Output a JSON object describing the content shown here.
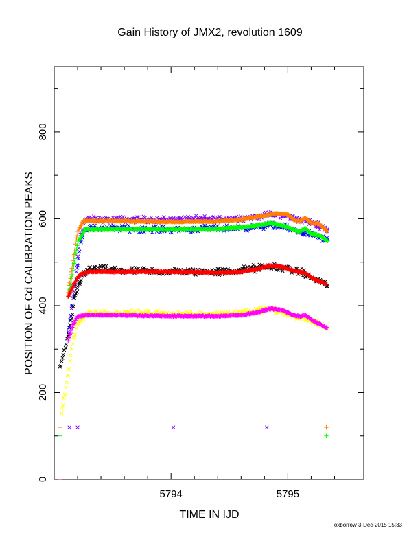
{
  "chart_data": {
    "type": "scatter",
    "title": "Gain History of JMX2, revolution 1609",
    "xlabel": "TIME IN IJD",
    "ylabel": "POSITION OF Cd CALIBRATION PEAKS",
    "footer": "oxborrow 3-Dec-2015 15:33",
    "xlim": [
      5793.0,
      5795.65
    ],
    "ylim": [
      0,
      950
    ],
    "x_ticks": [
      5794,
      5795
    ],
    "y_ticks": [
      0,
      200,
      400,
      600,
      800
    ],
    "grid": false,
    "legend": "none",
    "series": [
      {
        "name": "",
        "marker": "x",
        "color": "#7f00ff",
        "points": [
          [
            5793.13,
            120
          ],
          [
            5793.2,
            120
          ],
          [
            5794.02,
            120
          ],
          [
            5794.82,
            120
          ]
        ],
        "profile": [
          [
            5793.12,
            330
          ],
          [
            5793.18,
            450
          ],
          [
            5793.22,
            560
          ],
          [
            5793.26,
            598
          ],
          [
            5793.5,
            598
          ],
          [
            5794.0,
            598
          ],
          [
            5794.5,
            600
          ],
          [
            5794.7,
            603
          ],
          [
            5794.85,
            610
          ],
          [
            5795.0,
            605
          ],
          [
            5795.1,
            598
          ],
          [
            5795.2,
            592
          ],
          [
            5795.34,
            575
          ]
        ],
        "scatter": 10
      },
      {
        "name": "",
        "marker": "x",
        "color": "#0000ff",
        "points": [],
        "profile": [
          [
            5793.12,
            340
          ],
          [
            5793.18,
            440
          ],
          [
            5793.22,
            540
          ],
          [
            5793.26,
            578
          ],
          [
            5793.5,
            578
          ],
          [
            5794.0,
            575
          ],
          [
            5794.5,
            578
          ],
          [
            5794.7,
            580
          ],
          [
            5794.85,
            585
          ],
          [
            5795.0,
            578
          ],
          [
            5795.1,
            570
          ],
          [
            5795.2,
            565
          ],
          [
            5795.34,
            550
          ]
        ],
        "scatter": 10
      },
      {
        "name": "",
        "marker": "x",
        "color": "#000000",
        "points": [],
        "profile": [
          [
            5793.05,
            255
          ],
          [
            5793.12,
            330
          ],
          [
            5793.18,
            420
          ],
          [
            5793.24,
            470
          ],
          [
            5793.3,
            485
          ],
          [
            5793.6,
            480
          ],
          [
            5794.0,
            478
          ],
          [
            5794.5,
            478
          ],
          [
            5794.7,
            485
          ],
          [
            5794.85,
            490
          ],
          [
            5795.0,
            485
          ],
          [
            5795.1,
            478
          ],
          [
            5795.2,
            465
          ],
          [
            5795.34,
            448
          ]
        ],
        "scatter": 12
      },
      {
        "name": "",
        "marker": "x",
        "color": "#ffff00",
        "points": [],
        "profile": [
          [
            5793.06,
            150
          ],
          [
            5793.1,
            210
          ],
          [
            5793.15,
            300
          ],
          [
            5793.2,
            360
          ],
          [
            5793.28,
            382
          ],
          [
            5793.6,
            383
          ],
          [
            5794.0,
            380
          ],
          [
            5794.5,
            382
          ],
          [
            5794.7,
            388
          ],
          [
            5794.85,
            392
          ],
          [
            5795.0,
            380
          ],
          [
            5795.1,
            372
          ],
          [
            5795.2,
            365
          ],
          [
            5795.34,
            350
          ]
        ],
        "scatter": 10
      },
      {
        "name": "",
        "marker": "+",
        "color": "#ff8000",
        "points": [
          [
            5793.05,
            120
          ],
          [
            5795.33,
            120
          ]
        ],
        "profile": [
          [
            5793.12,
            430
          ],
          [
            5793.16,
            500
          ],
          [
            5793.2,
            570
          ],
          [
            5793.25,
            595
          ],
          [
            5793.5,
            595
          ],
          [
            5794.0,
            593
          ],
          [
            5794.4,
            594
          ],
          [
            5794.6,
            598
          ],
          [
            5794.75,
            605
          ],
          [
            5794.9,
            612
          ],
          [
            5795.0,
            610
          ],
          [
            5795.05,
            598
          ],
          [
            5795.1,
            594
          ],
          [
            5795.15,
            602
          ],
          [
            5795.2,
            590
          ],
          [
            5795.27,
            588
          ],
          [
            5795.34,
            570
          ]
        ],
        "scatter": 2
      },
      {
        "name": "",
        "marker": "+",
        "color": "#00ff00",
        "points": [
          [
            5793.05,
            100
          ],
          [
            5795.33,
            100
          ]
        ],
        "profile": [
          [
            5793.12,
            420
          ],
          [
            5793.16,
            480
          ],
          [
            5793.2,
            545
          ],
          [
            5793.26,
            575
          ],
          [
            5793.5,
            576
          ],
          [
            5794.0,
            575
          ],
          [
            5794.4,
            576
          ],
          [
            5794.6,
            580
          ],
          [
            5794.75,
            585
          ],
          [
            5794.85,
            590
          ],
          [
            5794.95,
            585
          ],
          [
            5795.05,
            575
          ],
          [
            5795.1,
            570
          ],
          [
            5795.15,
            578
          ],
          [
            5795.2,
            565
          ],
          [
            5795.27,
            562
          ],
          [
            5795.34,
            548
          ]
        ],
        "scatter": 2
      },
      {
        "name": "",
        "marker": "+",
        "color": "#ff0000",
        "points": [
          [
            5793.05,
            0
          ]
        ],
        "profile": [
          [
            5793.12,
            420
          ],
          [
            5793.17,
            450
          ],
          [
            5793.22,
            472
          ],
          [
            5793.3,
            478
          ],
          [
            5793.6,
            478
          ],
          [
            5794.0,
            478
          ],
          [
            5794.4,
            476
          ],
          [
            5794.6,
            478
          ],
          [
            5794.75,
            485
          ],
          [
            5794.85,
            492
          ],
          [
            5794.95,
            490
          ],
          [
            5795.05,
            480
          ],
          [
            5795.15,
            475
          ],
          [
            5795.22,
            462
          ],
          [
            5795.34,
            448
          ]
        ],
        "scatter": 2
      },
      {
        "name": "",
        "marker": "+",
        "color": "#ff00ff",
        "points": [],
        "profile": [
          [
            5793.12,
            320
          ],
          [
            5793.16,
            355
          ],
          [
            5793.2,
            375
          ],
          [
            5793.28,
            378
          ],
          [
            5793.6,
            378
          ],
          [
            5794.0,
            376
          ],
          [
            5794.4,
            376
          ],
          [
            5794.6,
            378
          ],
          [
            5794.75,
            385
          ],
          [
            5794.85,
            393
          ],
          [
            5794.95,
            390
          ],
          [
            5795.05,
            378
          ],
          [
            5795.1,
            375
          ],
          [
            5795.15,
            378
          ],
          [
            5795.2,
            368
          ],
          [
            5795.34,
            348
          ]
        ],
        "scatter": 2
      }
    ]
  }
}
